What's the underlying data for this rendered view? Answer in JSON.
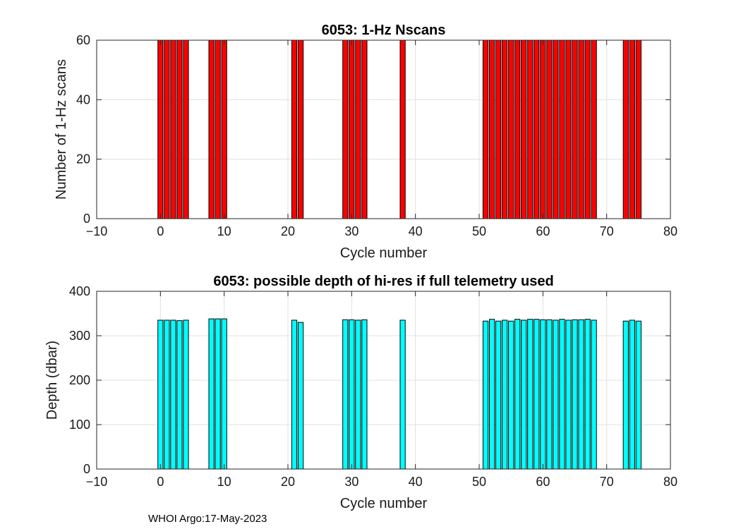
{
  "chart_data": [
    {
      "type": "bar",
      "title": "6053: 1-Hz Nscans",
      "xlabel": "Cycle number",
      "ylabel": "Number of 1-Hz scans",
      "xlim": [
        -10,
        80
      ],
      "ylim": [
        0,
        60
      ],
      "xticks": [
        -10,
        0,
        10,
        20,
        30,
        40,
        50,
        60,
        70,
        80
      ],
      "yticks": [
        0,
        20,
        40,
        60
      ],
      "bar_color": "#ff0000",
      "grid": true,
      "x": [
        0,
        1,
        2,
        3,
        4,
        8,
        9,
        10,
        21,
        22,
        29,
        30,
        31,
        32,
        38,
        51,
        52,
        53,
        54,
        55,
        56,
        57,
        58,
        59,
        60,
        61,
        62,
        63,
        64,
        65,
        66,
        67,
        68,
        73,
        74,
        75
      ],
      "values": [
        60,
        60,
        60,
        60,
        60,
        60,
        60,
        60,
        60,
        60,
        60,
        60,
        60,
        60,
        60,
        60,
        60,
        60,
        60,
        60,
        60,
        60,
        60,
        60,
        60,
        60,
        60,
        60,
        60,
        60,
        60,
        60,
        60,
        60,
        60,
        60
      ]
    },
    {
      "type": "bar",
      "title": "6053: possible depth of hi-res if full telemetry used",
      "xlabel": "Cycle number",
      "ylabel": "Depth (dbar)",
      "xlim": [
        -10,
        80
      ],
      "ylim": [
        0,
        400
      ],
      "xticks": [
        -10,
        0,
        10,
        20,
        30,
        40,
        50,
        60,
        70,
        80
      ],
      "yticks": [
        0,
        100,
        200,
        300,
        400
      ],
      "bar_color": "#00ffff",
      "grid": true,
      "x": [
        0,
        1,
        2,
        3,
        4,
        8,
        9,
        10,
        21,
        22,
        29,
        30,
        31,
        32,
        38,
        51,
        52,
        53,
        54,
        55,
        56,
        57,
        58,
        59,
        60,
        61,
        62,
        63,
        64,
        65,
        66,
        67,
        68,
        73,
        74,
        75
      ],
      "values": [
        335,
        335,
        335,
        334,
        335,
        338,
        338,
        338,
        335,
        330,
        336,
        336,
        335,
        336,
        335,
        333,
        337,
        333,
        335,
        333,
        337,
        335,
        337,
        337,
        336,
        336,
        335,
        337,
        335,
        336,
        336,
        337,
        335,
        333,
        335,
        333
      ]
    }
  ],
  "footer": "WHOI Argo:17-May-2023"
}
